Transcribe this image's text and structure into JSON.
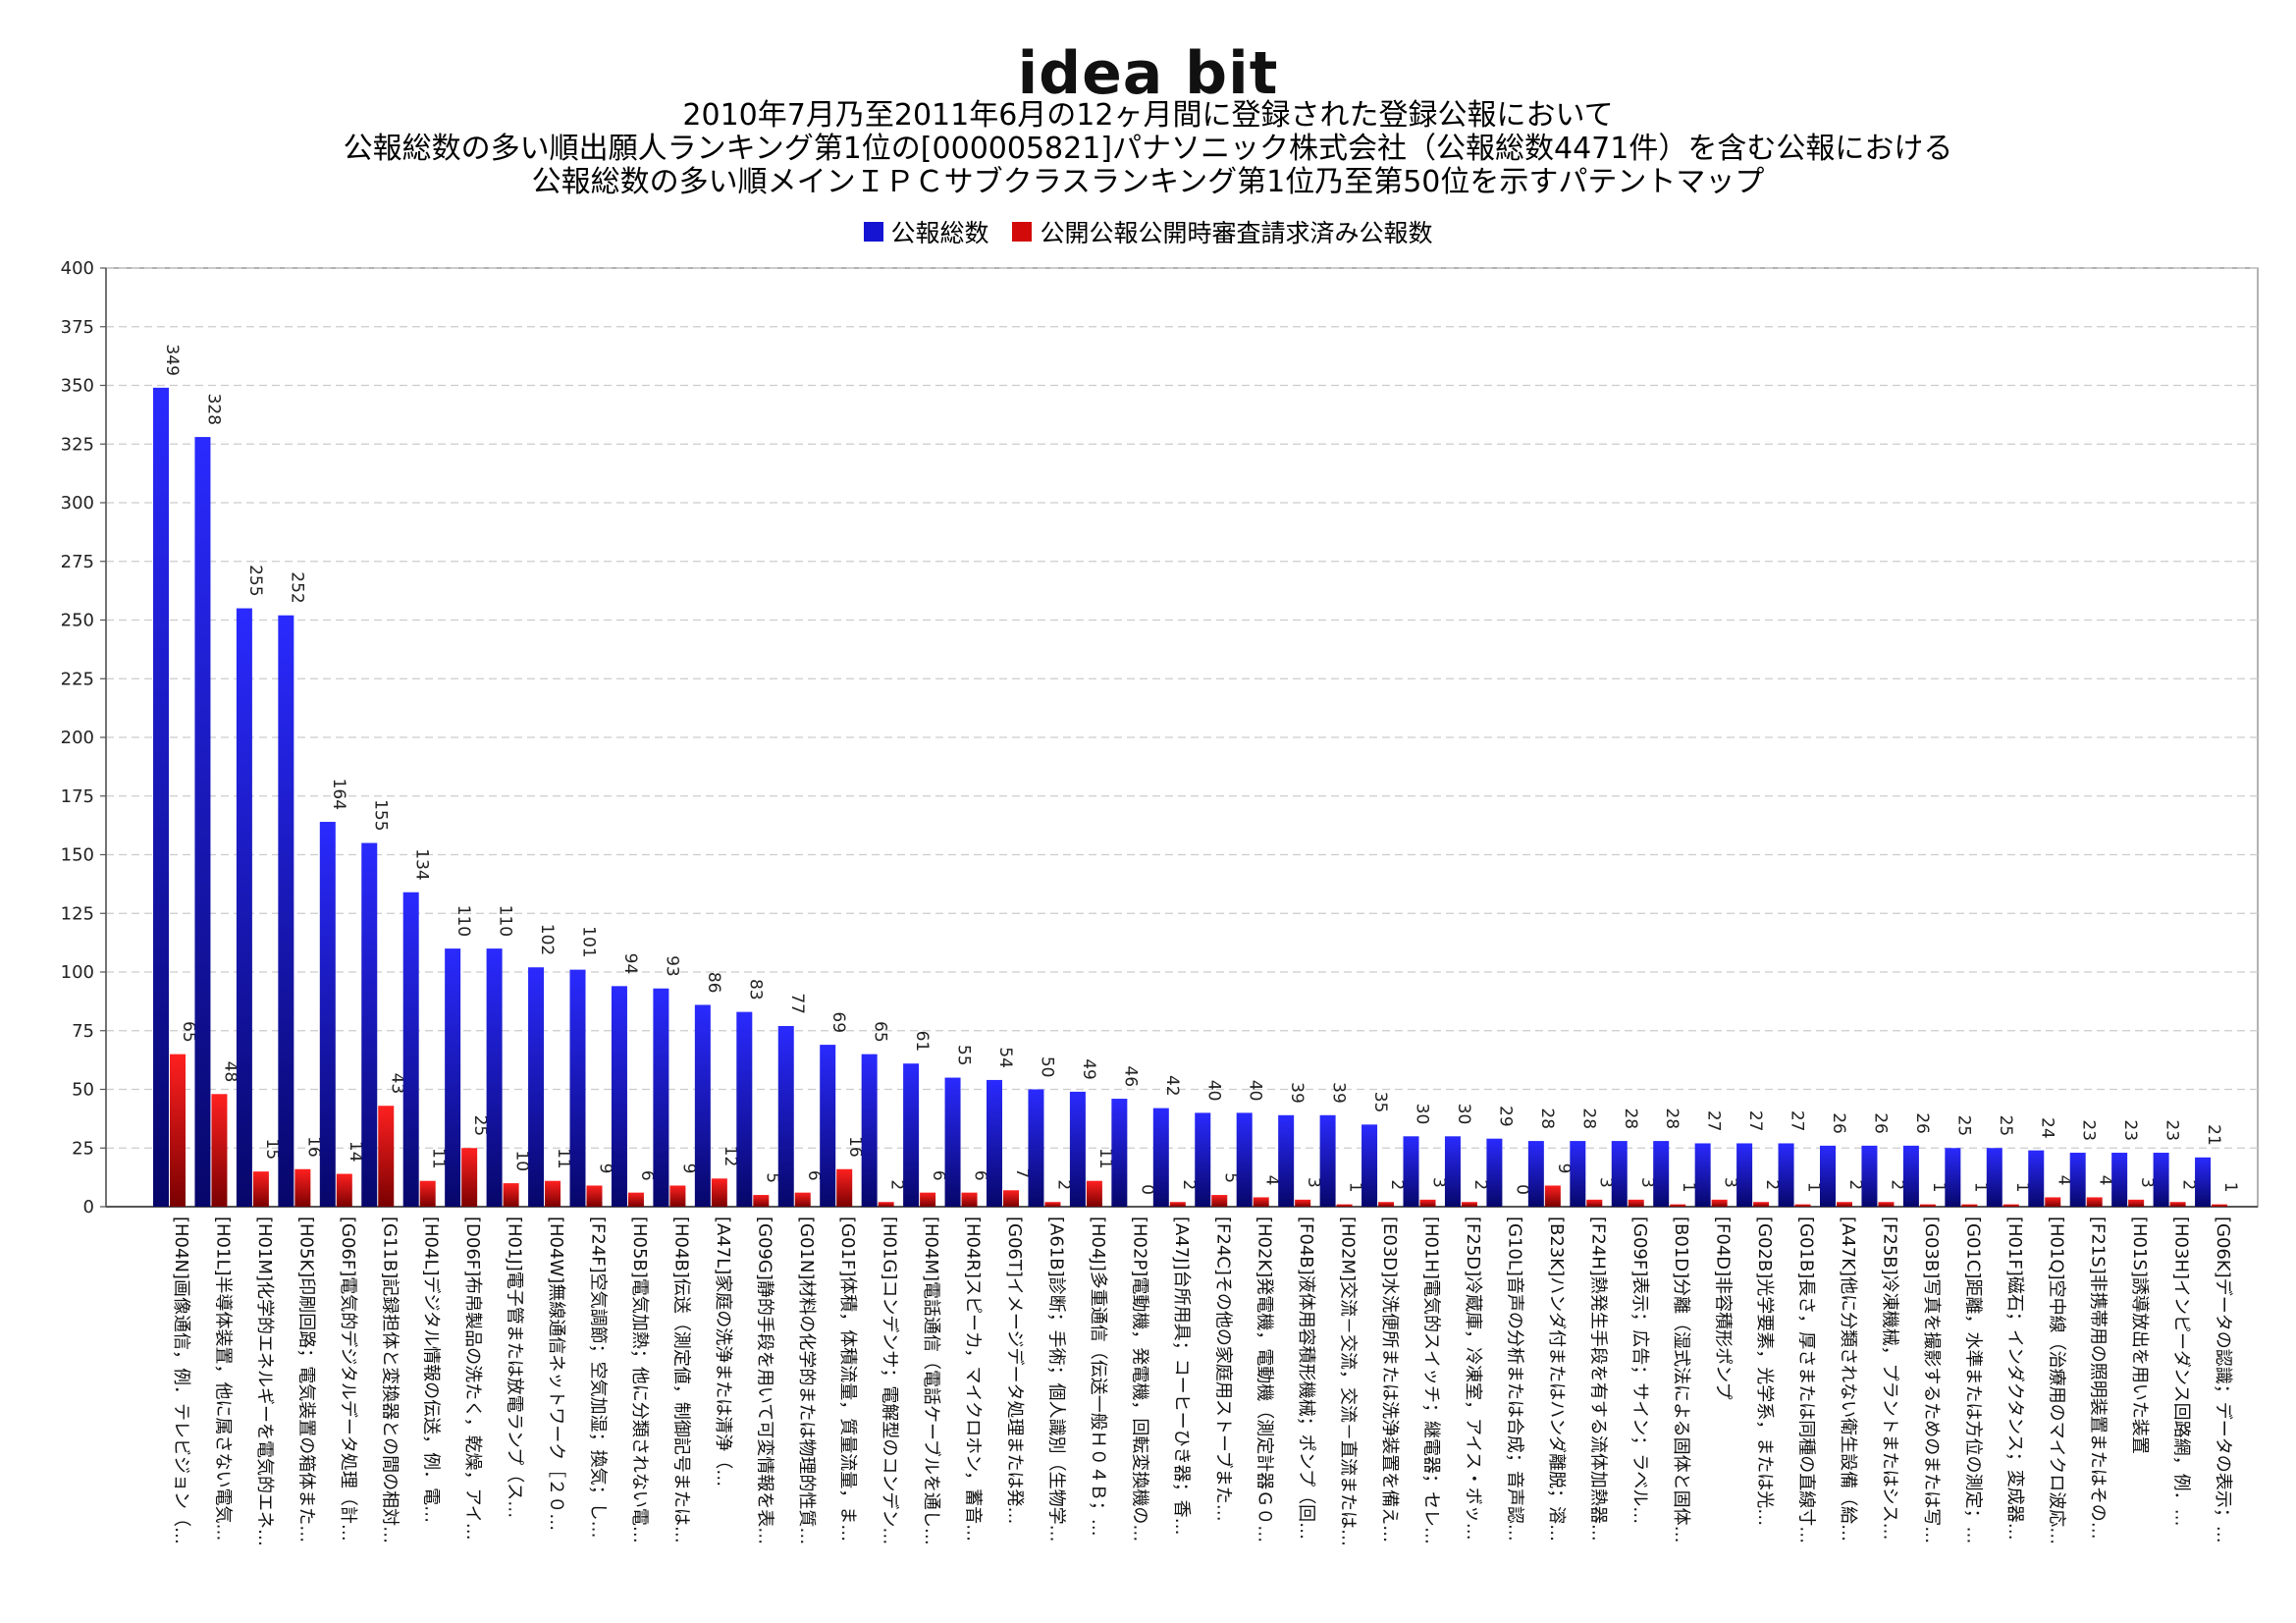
{
  "logo": "idea bit",
  "title_lines": [
    "2010年7月乃至2011年6月の12ヶ月間に登録された登録公報において",
    "公報総数の多い順出願人ランキング第1位の[000005821]パナソニック株式会社（公報総数4471件）を含む公報における",
    "公報総数の多い順メインＩＰＣサブクラスランキング第1位乃至第50位を示すパテントマップ"
  ],
  "colors": {
    "series1": "#1414d2",
    "series2": "#d20a0a",
    "grid": "#cccccc",
    "axis": "#999999"
  },
  "chart_data": {
    "type": "bar",
    "ylim": [
      0,
      400
    ],
    "yticks": [
      0,
      25,
      50,
      75,
      100,
      125,
      150,
      175,
      200,
      225,
      250,
      275,
      300,
      325,
      350,
      375,
      400
    ],
    "grid": true,
    "legend_position": "top-center",
    "categories": [
      "[H04N]画像通信，例．テレビジョン（…",
      "[H01L]半導体装置，他に属さない電気…",
      "[H01M]化学的エネルギーを電気的エネ…",
      "[H05K]印刷回路；電気装置の箱体また…",
      "[G06F]電気的デジタルデータ処理（計…",
      "[G11B]記録担体と変換器との間の相対…",
      "[H04L]デジタル情報の伝送，例．電…",
      "[D06F]布帛製品の洗たく，乾燥，アイ…",
      "[H01J]電子管または放電ランプ（ス…",
      "[H04W]無線通信ネットワーク［２０…",
      "[F24F]空気調節；空気加湿；換気；し…",
      "[H05B]電気加熱；他に分類されない電…",
      "[H04B]伝送（測定値，制御記号または…",
      "[A47L]家庭の洗浄または清浄（…",
      "[G09G]静的手段を用いて可変情報を表…",
      "[G01N]材料の化学的または物理的性質…",
      "[G01F]体積，体積流量，質量流量，ま…",
      "[H01G]コンデンサ；電解型のコンデン…",
      "[H04M]電話通信（電話ケーブルを通し…",
      "[H04R]スピーカ，マイクロホン，蓄音…",
      "[G06T]イメージデータ処理または発…",
      "[A61B]診断；手術；個人識別（生物学…",
      "[H04J]多重通信（伝送一般Ｈ０４Ｂ；…",
      "[H02P]電動機，発電機，回転変換機の…",
      "[A47J]台所用具；コーヒーひき器；香…",
      "[F24C]その他の家庭用ストーブまた…",
      "[H02K]発電機，電動機（測定計器Ｇ０…",
      "[F04B]液体用容積形機械；ポンプ（回…",
      "[H02M]交流－交流，交流－直流または…",
      "[E03D]水洗便所または洗浄装置を備え…",
      "[H01H]電気的スイッチ；継電器；セレ…",
      "[F25D]冷蔵庫，冷凍室，アイス・ボッ…",
      "[G10L]音声の分析または合成；音声認…",
      "[B23K]ハンダ付またはハンダ離脱；溶…",
      "[F24H]熱発生手段を有する流体加熱器…",
      "[G09F]表示；広告；サイン；ラベル…",
      "[B01D]分離（湿式法による固体と固体…",
      "[F04D]非容積形ポンプ",
      "[G02B]光学要素，光学系，または光…",
      "[G01B]長さ，厚さまたは同種の直線寸…",
      "[A47K]他に分類されない衛生設備（給…",
      "[F25B]冷凍機械，プラントまたはシス…",
      "[G03B]写真を撮影するためのまたは写…",
      "[G01C]距離，水準または方位の測定；…",
      "[H01F]磁石；インダクタンス；変成器…",
      "[H01Q]空中線（治療用のマイクロ波応…",
      "[F21S]非携帯用の照明装置またはその…",
      "[H01S]誘導放出を用いた装置",
      "[H03H]インピーダンス回路網，例．…",
      "[G06K]データの認識；データの表示；…"
    ],
    "series": [
      {
        "name": "公報総数",
        "values": [
          349,
          328,
          255,
          252,
          164,
          155,
          134,
          110,
          110,
          102,
          101,
          94,
          93,
          86,
          83,
          77,
          69,
          65,
          61,
          55,
          54,
          50,
          49,
          46,
          42,
          40,
          40,
          39,
          39,
          35,
          30,
          30,
          29,
          28,
          28,
          28,
          28,
          27,
          27,
          27,
          26,
          26,
          26,
          25,
          25,
          24,
          23,
          23,
          23,
          21
        ]
      },
      {
        "name": "公開公報公開時審査請求済み公報数",
        "values": [
          65,
          48,
          15,
          16,
          14,
          43,
          11,
          25,
          10,
          11,
          9,
          6,
          9,
          12,
          5,
          6,
          16,
          2,
          6,
          6,
          7,
          2,
          11,
          0,
          2,
          5,
          4,
          3,
          1,
          2,
          3,
          2,
          0,
          9,
          3,
          3,
          1,
          3,
          2,
          1,
          2,
          2,
          1,
          1,
          1,
          4,
          4,
          3,
          2,
          1
        ]
      }
    ]
  }
}
